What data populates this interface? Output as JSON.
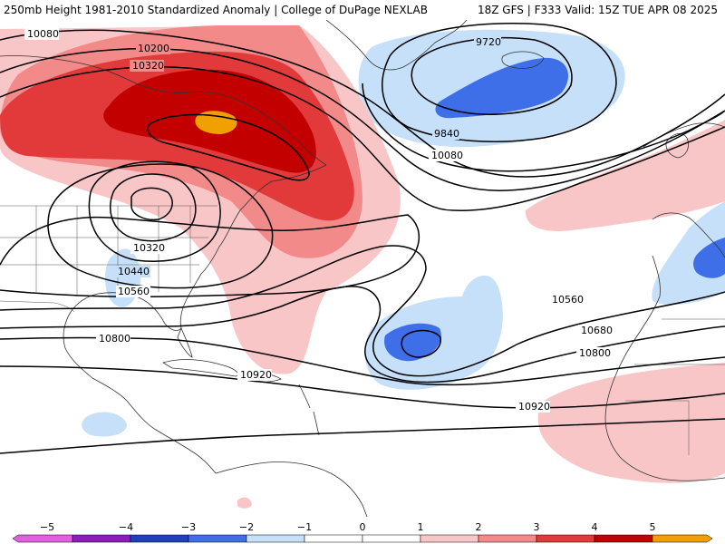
{
  "header": {
    "left_title": "250mb Height 1981-2010 Standardized Anomaly | College of DuPage NEXLAB",
    "right_title": "18Z GFS | F333 Valid: 15Z TUE APR 08 2025"
  },
  "colors": {
    "neg5": "#e060e0",
    "neg4": "#8a1fb8",
    "neg3": "#1f3fbf",
    "neg2": "#3f6fe8",
    "neg1": "#c6e0fa",
    "zero": "#ffffff",
    "pos1": "#f9c6c8",
    "pos2": "#f28a8a",
    "pos3": "#e23a3a",
    "pos4": "#c20000",
    "pos5": "#f0a000",
    "contour": "#000000",
    "coast": "#333333"
  },
  "contour_labels": {
    "l10080_nw": "10080",
    "l10200": "10200",
    "l10320_n": "10320",
    "l9720": "9720",
    "l9840": "9840",
    "l10080_e": "10080",
    "l10320_s": "10320",
    "l10440": "10440",
    "l10560_w": "10560",
    "l10560_e": "10560",
    "l10680": "10680",
    "l10800_w": "10800",
    "l10800_e": "10800",
    "l10920_w": "10920",
    "l10920_e": "10920"
  },
  "colorbar": {
    "ticks": [
      "−5",
      "−4",
      "−3",
      "−2",
      "−1",
      "0",
      "1",
      "2",
      "3",
      "4",
      "5"
    ]
  }
}
